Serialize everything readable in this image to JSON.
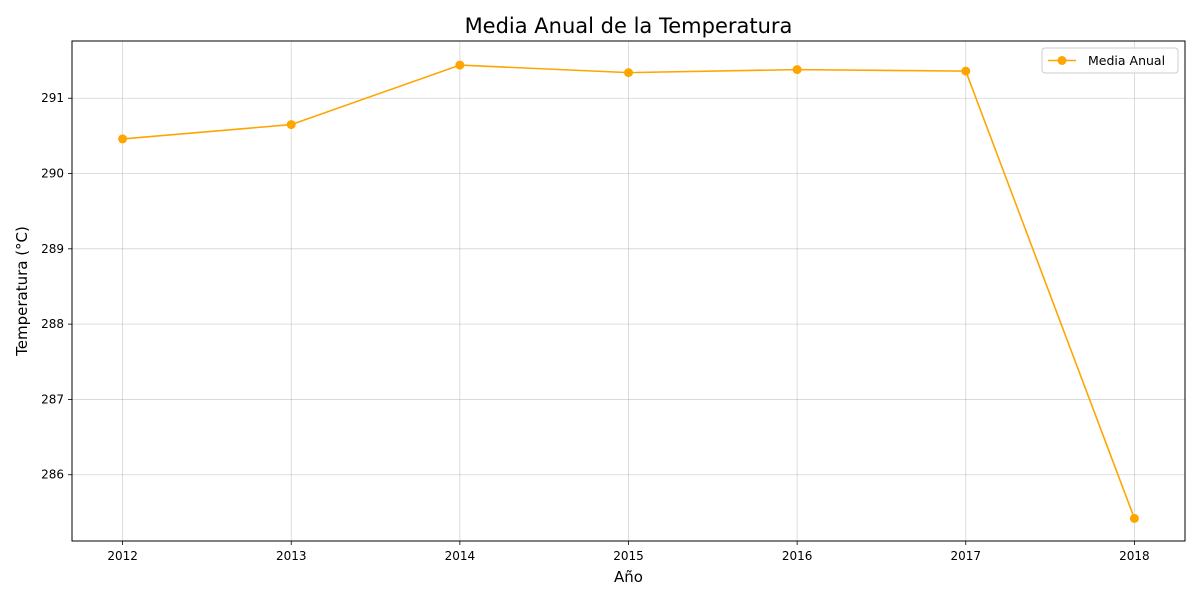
{
  "chart_data": {
    "type": "line",
    "title": "Media Anual de la Temperatura",
    "xlabel": "Año",
    "ylabel": "Temperatura (°C)",
    "x": [
      2012,
      2013,
      2014,
      2015,
      2016,
      2017,
      2018
    ],
    "x_tick_labels": [
      "2012",
      "2013",
      "2014",
      "2015",
      "2016",
      "2017",
      "2018"
    ],
    "y_ticks": [
      286,
      287,
      288,
      289,
      290,
      291
    ],
    "y_tick_labels": [
      "286",
      "287",
      "288",
      "289",
      "290",
      "291"
    ],
    "xlim": [
      2011.7,
      2018.3
    ],
    "ylim": [
      285.12,
      291.76
    ],
    "grid": true,
    "legend_position": "top-right",
    "series": [
      {
        "name": "Media Anual",
        "color": "#FFA500",
        "marker": "circle",
        "values": [
          290.46,
          290.65,
          291.44,
          291.34,
          291.38,
          291.36,
          285.42
        ]
      }
    ]
  }
}
